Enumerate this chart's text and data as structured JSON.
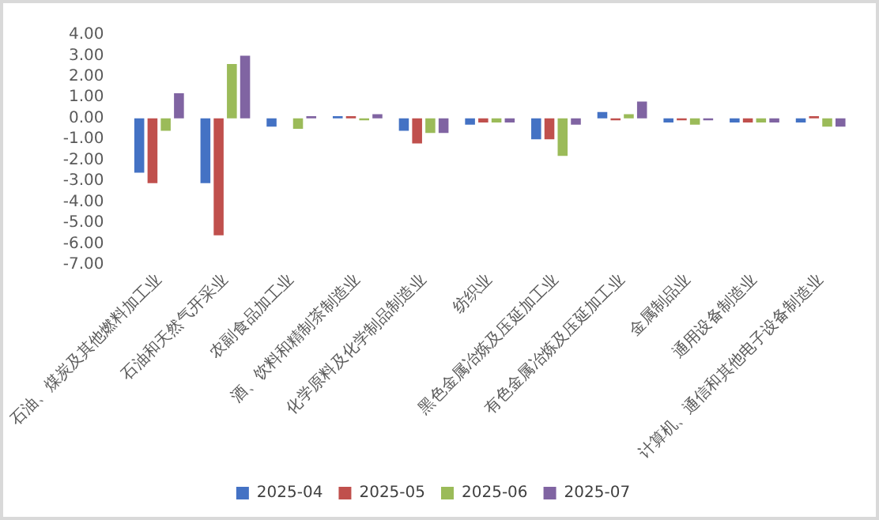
{
  "chart_data": {
    "type": "bar",
    "categories": [
      "石油、煤炭及其他燃料加工业",
      "石油和天然气开采业",
      "农副食品加工业",
      "酒、饮料和精制茶制造业",
      "化学原料及化学制品制造业",
      "纺织业",
      "黑色金属冶炼及压延加工业",
      "有色金属冶炼及压延加工业",
      "金属制品业",
      "通用设备制造业",
      "计算机、通信和其他电子设备制造业"
    ],
    "series": [
      {
        "name": "2025-04",
        "color": "#4472c4",
        "values": [
          -2.6,
          -3.1,
          -0.4,
          0.1,
          -0.6,
          -0.3,
          -1.0,
          0.3,
          -0.2,
          -0.2,
          -0.2
        ]
      },
      {
        "name": "2025-05",
        "color": "#c0504d",
        "values": [
          -3.1,
          -5.6,
          0,
          0.1,
          -1.2,
          -0.2,
          -1.0,
          -0.1,
          -0.1,
          -0.2,
          0.1
        ]
      },
      {
        "name": "2025-06",
        "color": "#9bbb59",
        "values": [
          -0.6,
          2.6,
          -0.5,
          -0.1,
          -0.7,
          -0.2,
          -1.8,
          0.2,
          -0.3,
          -0.2,
          -0.4
        ]
      },
      {
        "name": "2025-07",
        "color": "#8064a2",
        "values": [
          1.2,
          3.0,
          0.1,
          0.2,
          -0.7,
          -0.2,
          -0.3,
          0.8,
          -0.1,
          -0.2,
          -0.4
        ]
      }
    ],
    "ylim": [
      -7,
      4
    ],
    "yticks": [
      {
        "value": -7,
        "label": "-7.00"
      },
      {
        "value": -6,
        "label": "-6.00"
      },
      {
        "value": -5,
        "label": "-5.00"
      },
      {
        "value": -4,
        "label": "-4.00"
      },
      {
        "value": -3,
        "label": "-3.00"
      },
      {
        "value": -2,
        "label": "-2.00"
      },
      {
        "value": -1,
        "label": "-1.00"
      },
      {
        "value": 0,
        "label": "0.00"
      },
      {
        "value": 1,
        "label": "1.00"
      },
      {
        "value": 2,
        "label": "2.00"
      },
      {
        "value": 3,
        "label": "3.00"
      },
      {
        "value": 4,
        "label": "4.00"
      }
    ],
    "grid": false,
    "legend": "bottom"
  }
}
